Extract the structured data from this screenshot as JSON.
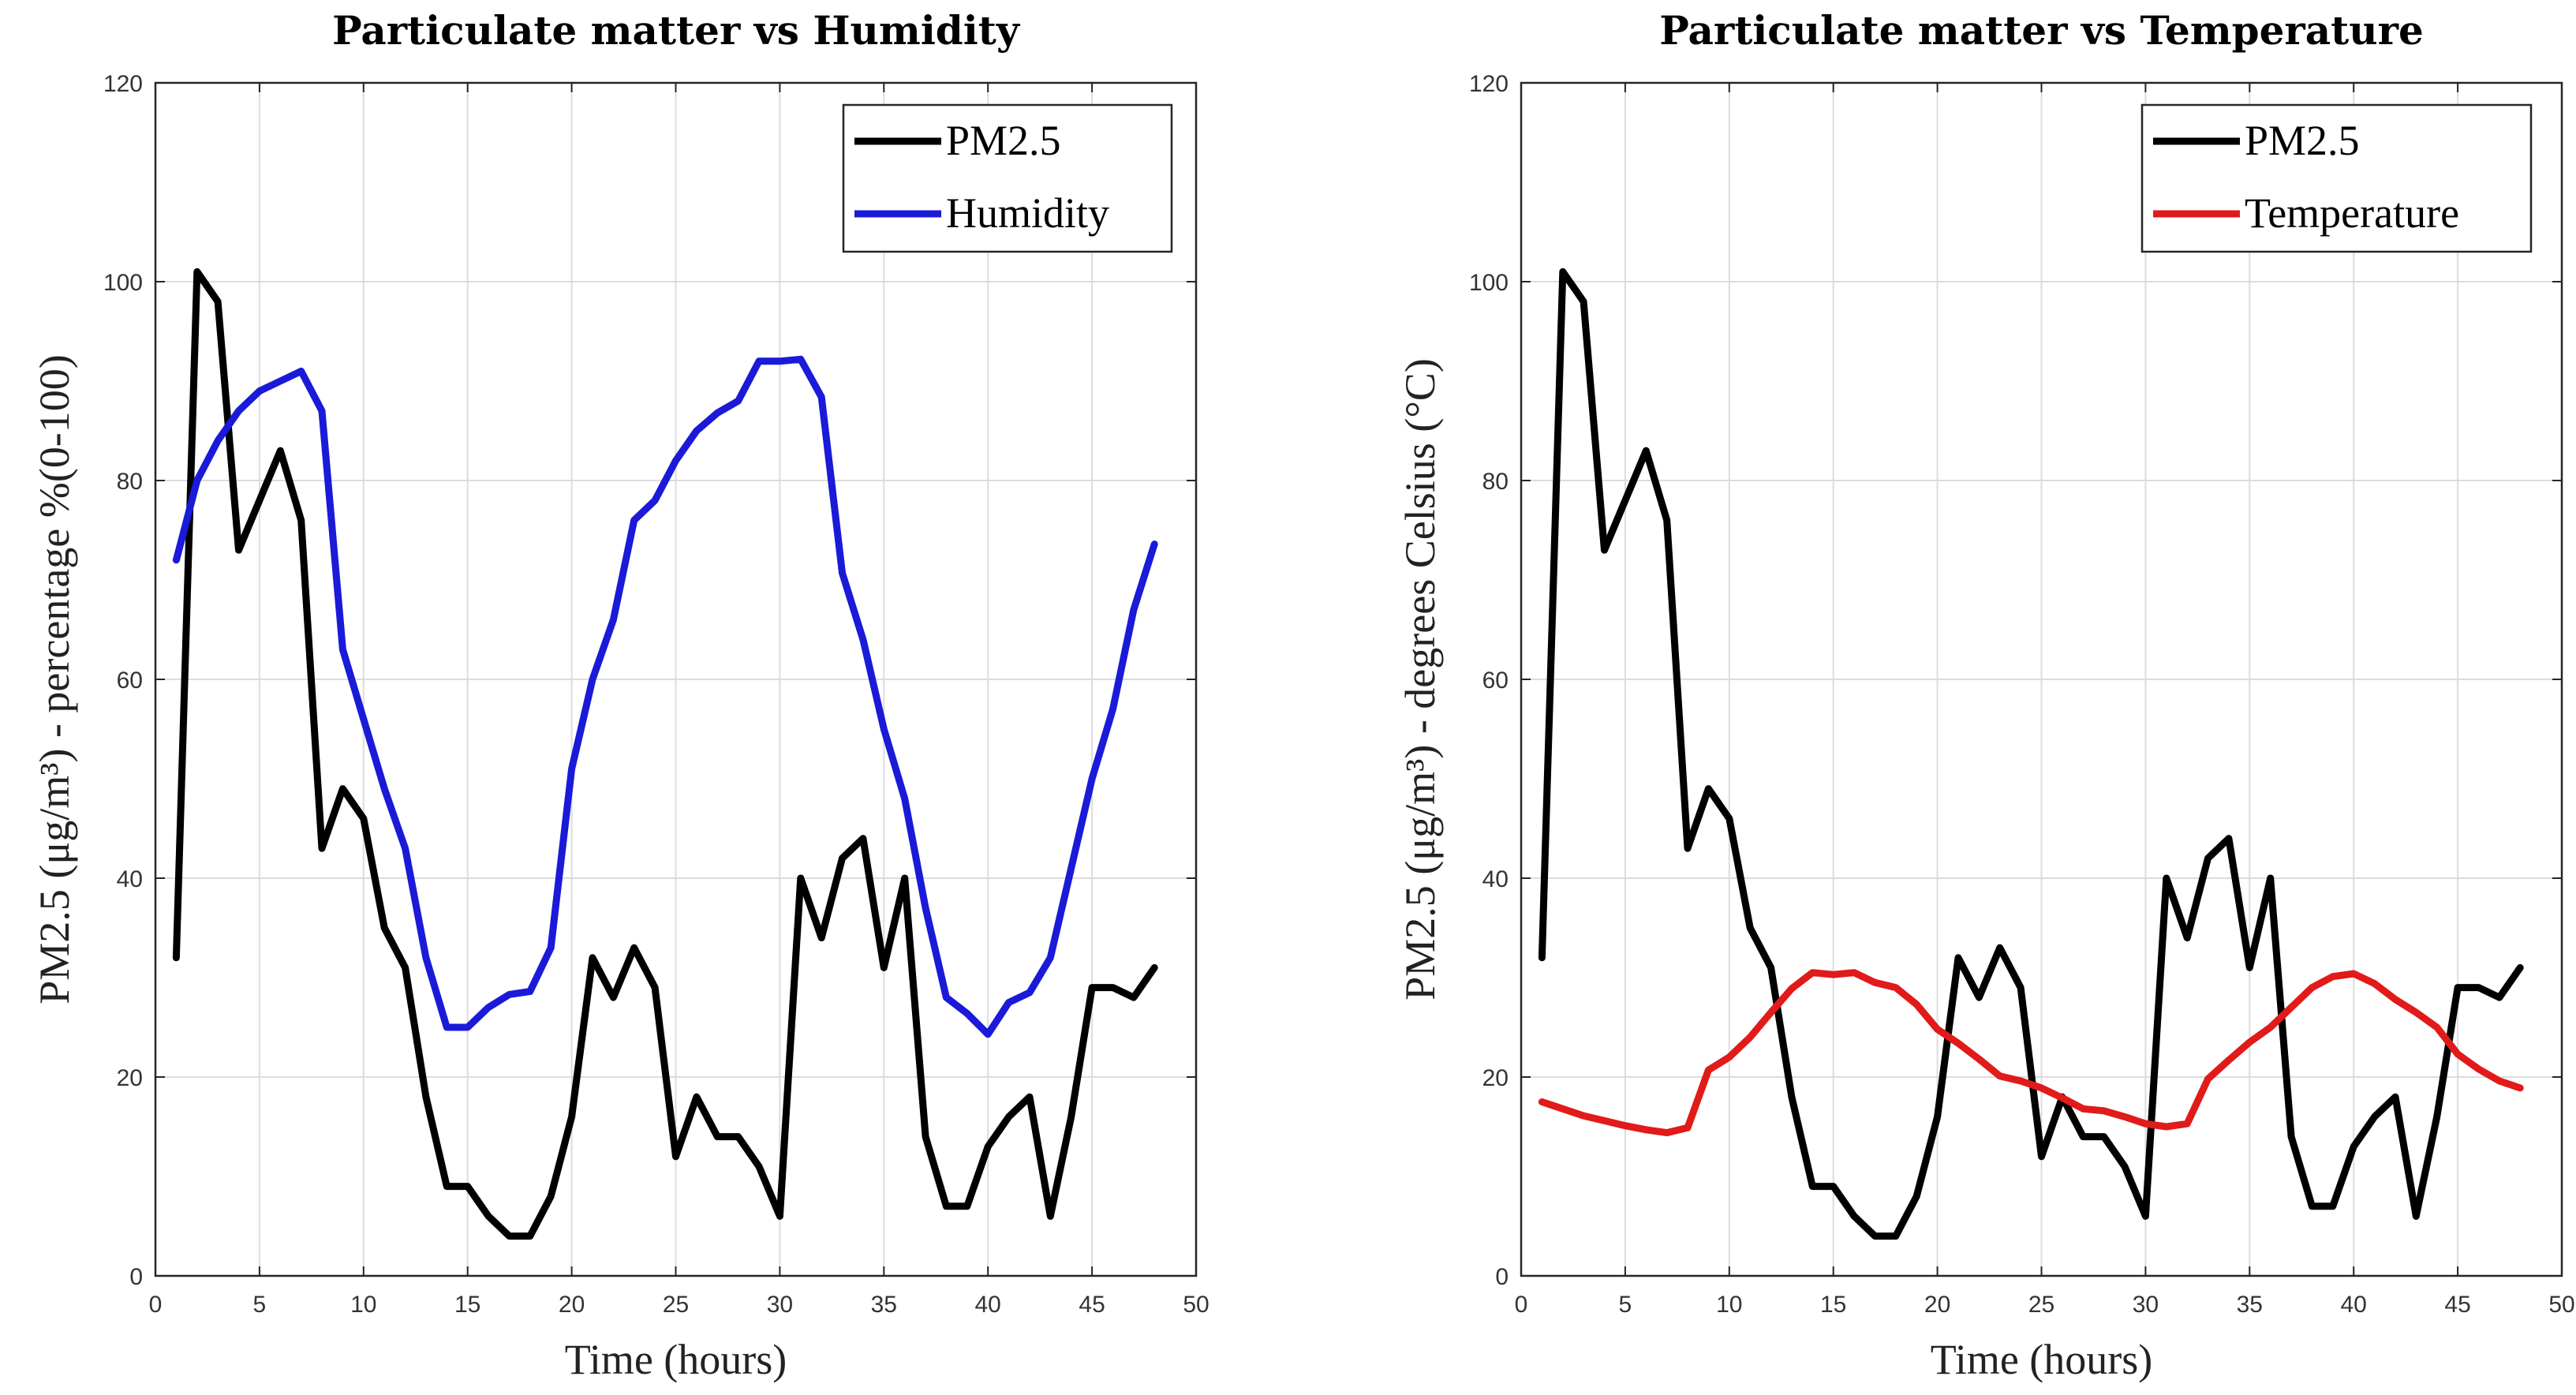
{
  "colors": {
    "PM2.5": "#000000",
    "Humidity": "#1a1ad8",
    "Temperature": "#e11a1a"
  },
  "chart_data": [
    {
      "type": "line",
      "title": "Particulate matter vs Humidity",
      "xlabel": "Time (hours)",
      "ylabel": "PM2.5 (μg/m³) - percentage %(0-100)",
      "xlim": [
        0,
        50
      ],
      "ylim": [
        0,
        120
      ],
      "xticks": [
        0,
        5,
        10,
        15,
        20,
        25,
        30,
        35,
        40,
        45,
        50
      ],
      "yticks": [
        0,
        20,
        40,
        60,
        80,
        100,
        120
      ],
      "grid": true,
      "legend_position": "top-right",
      "x": [
        1,
        2,
        3,
        4,
        5,
        6,
        7,
        8,
        9,
        10,
        11,
        12,
        13,
        14,
        15,
        16,
        17,
        18,
        19,
        20,
        21,
        22,
        23,
        24,
        25,
        26,
        27,
        28,
        29,
        30,
        31,
        32,
        33,
        34,
        35,
        36,
        37,
        38,
        39,
        40,
        41,
        42,
        43,
        44,
        45,
        46,
        47,
        48
      ],
      "series": [
        {
          "name": "PM2.5",
          "values": [
            32,
            101,
            98,
            73,
            78,
            83,
            76,
            43,
            49,
            46,
            35,
            31,
            18,
            9,
            9,
            6,
            4,
            4,
            8,
            16,
            32,
            28,
            33,
            29,
            12,
            18,
            14,
            14,
            11,
            6,
            40,
            34,
            42,
            44,
            31,
            40,
            14,
            7,
            7,
            13,
            16,
            18,
            6,
            16,
            29,
            29,
            28,
            31
          ]
        },
        {
          "name": "Humidity",
          "values": [
            72,
            80,
            84,
            87,
            89,
            90,
            91,
            87,
            63,
            56,
            49,
            43,
            32,
            25,
            25,
            27,
            28.3,
            28.6,
            33,
            51,
            60,
            66,
            76,
            78,
            82,
            85,
            86.8,
            88,
            92,
            92,
            92.2,
            88.4,
            70.7,
            64,
            55,
            48,
            37,
            28,
            26.4,
            24.3,
            27.5,
            28.5,
            32,
            41,
            50,
            57,
            67,
            73.6
          ]
        }
      ]
    },
    {
      "type": "line",
      "title": "Particulate matter vs Temperature",
      "xlabel": "Time (hours)",
      "ylabel": "PM2.5 (μg/m³) - degrees Celsius (°C)",
      "xlim": [
        0,
        50
      ],
      "ylim": [
        0,
        120
      ],
      "xticks": [
        0,
        5,
        10,
        15,
        20,
        25,
        30,
        35,
        40,
        45,
        50
      ],
      "yticks": [
        0,
        20,
        40,
        60,
        80,
        100,
        120
      ],
      "grid": true,
      "legend_position": "top-right",
      "x": [
        1,
        2,
        3,
        4,
        5,
        6,
        7,
        8,
        9,
        10,
        11,
        12,
        13,
        14,
        15,
        16,
        17,
        18,
        19,
        20,
        21,
        22,
        23,
        24,
        25,
        26,
        27,
        28,
        29,
        30,
        31,
        32,
        33,
        34,
        35,
        36,
        37,
        38,
        39,
        40,
        41,
        42,
        43,
        44,
        45,
        46,
        47,
        48
      ],
      "series": [
        {
          "name": "PM2.5",
          "values": [
            32,
            101,
            98,
            73,
            78,
            83,
            76,
            43,
            49,
            46,
            35,
            31,
            18,
            9,
            9,
            6,
            4,
            4,
            8,
            16,
            32,
            28,
            33,
            29,
            12,
            18,
            14,
            14,
            11,
            6,
            40,
            34,
            42,
            44,
            31,
            40,
            14,
            7,
            7,
            13,
            16,
            18,
            6,
            16,
            29,
            29,
            28,
            31
          ]
        },
        {
          "name": "Temperature",
          "values": [
            17.5,
            16.8,
            16.1,
            15.6,
            15.1,
            14.7,
            14.4,
            14.9,
            20.7,
            22,
            24,
            26.5,
            28.9,
            30.5,
            30.3,
            30.5,
            29.5,
            29,
            27.3,
            24.8,
            23.4,
            21.8,
            20.1,
            19.6,
            18.9,
            17.9,
            16.8,
            16.6,
            16,
            15.3,
            15,
            15.3,
            19.8,
            21.7,
            23.5,
            25,
            27,
            29,
            30.1,
            30.4,
            29.4,
            27.8,
            26.5,
            25,
            22.3,
            20.8,
            19.6,
            18.9
          ]
        }
      ]
    }
  ]
}
